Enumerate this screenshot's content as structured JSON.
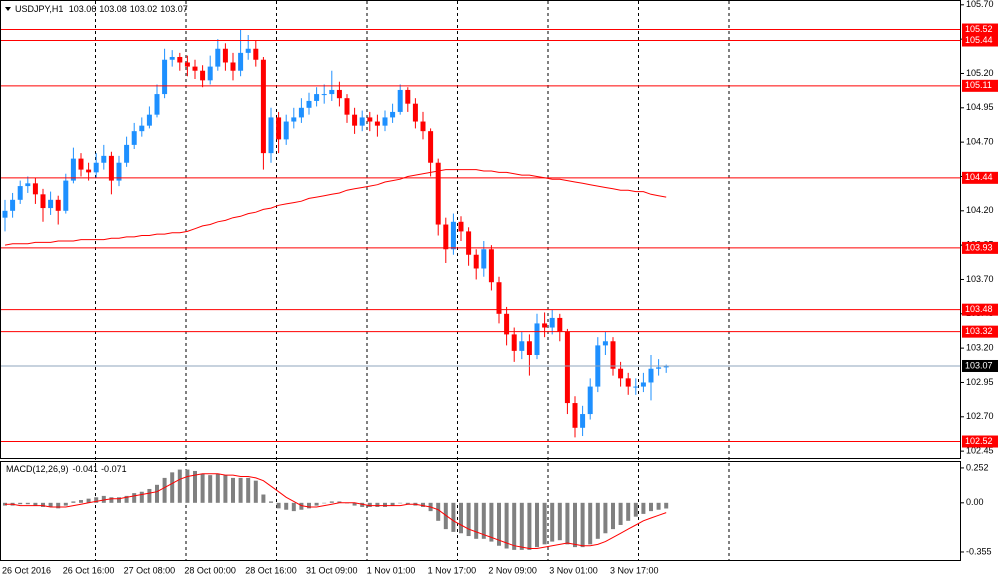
{
  "chart_data": [
    {
      "type": "candlestick",
      "title": "USDJPY,H1",
      "categories": [
        "26 Oct 2016",
        null,
        null,
        null,
        null,
        null,
        null,
        null,
        "26 Oct 16:00",
        null,
        null,
        null,
        null,
        null,
        null,
        null,
        "27 Oct 08:00",
        null,
        null,
        null,
        null,
        null,
        null,
        null,
        "28 Oct 00:00",
        null,
        null,
        null,
        null,
        null,
        null,
        null,
        "28 Oct 16:00",
        null,
        null,
        null,
        null,
        null,
        null,
        null,
        "31 Oct 09:00",
        null,
        null,
        null,
        null,
        null,
        null,
        null,
        "1 Nov 01:00",
        null,
        null,
        null,
        null,
        null,
        null,
        null,
        "1 Nov 17:00",
        null,
        null,
        null,
        null,
        null,
        null,
        null,
        "2 Nov 09:00",
        null,
        null,
        null,
        null,
        null,
        null,
        null,
        "3 Nov 01:00",
        null,
        null,
        null,
        null,
        null,
        null,
        null,
        "3 Nov 17:00",
        null,
        null,
        null,
        null,
        null,
        null,
        null
      ],
      "open": [
        104.15,
        104.2,
        104.28,
        104.38,
        104.4,
        104.32,
        104.22,
        104.28,
        104.2,
        104.42,
        104.58,
        104.5,
        104.48,
        104.55,
        104.6,
        104.42,
        104.55,
        104.68,
        104.78,
        104.82,
        104.9,
        105.05,
        105.3,
        105.32,
        105.28,
        105.25,
        105.22,
        105.15,
        105.25,
        105.38,
        105.28,
        105.22,
        105.35,
        105.38,
        105.3,
        104.62,
        104.88,
        104.72,
        104.85,
        104.88,
        104.95,
        105.0,
        105.05,
        105.05,
        105.08,
        105.02,
        104.9,
        104.82,
        104.88,
        104.85,
        104.82,
        104.88,
        104.92,
        105.08,
        104.98,
        104.85,
        104.78,
        104.55,
        104.1,
        103.92,
        104.12,
        104.05,
        103.88,
        103.78,
        103.92,
        103.68,
        103.45,
        103.3,
        103.18,
        103.25,
        103.15,
        103.38,
        103.35,
        103.42,
        103.32,
        102.8,
        102.62,
        102.72,
        102.92,
        103.22,
        103.25,
        103.05,
        102.98,
        102.92,
        102.92,
        102.95,
        103.05,
        103.06
      ],
      "high": [
        104.28,
        104.33,
        104.42,
        104.45,
        104.44,
        104.36,
        104.34,
        104.31,
        104.47,
        104.66,
        104.62,
        104.55,
        104.62,
        104.68,
        104.63,
        104.6,
        104.74,
        104.84,
        104.88,
        104.96,
        105.12,
        105.38,
        105.37,
        105.35,
        105.33,
        105.3,
        105.26,
        105.33,
        105.45,
        105.42,
        105.35,
        105.52,
        105.48,
        105.44,
        105.32,
        104.95,
        104.92,
        104.9,
        104.95,
        105.02,
        105.06,
        105.1,
        105.12,
        105.22,
        105.14,
        105.05,
        104.95,
        104.93,
        104.92,
        104.9,
        104.93,
        104.98,
        105.12,
        105.1,
        105.02,
        104.92,
        104.8,
        104.58,
        104.15,
        104.18,
        104.16,
        104.08,
        103.92,
        103.98,
        103.95,
        103.72,
        103.5,
        103.35,
        103.32,
        103.3,
        103.45,
        103.46,
        103.48,
        103.45,
        103.34,
        102.85,
        102.78,
        102.98,
        103.28,
        103.32,
        103.28,
        103.1,
        103.02,
        102.98,
        103.02,
        103.15,
        103.12,
        103.08
      ],
      "low": [
        104.05,
        104.15,
        104.25,
        104.33,
        104.25,
        104.12,
        104.17,
        104.1,
        104.18,
        104.4,
        104.45,
        104.42,
        104.44,
        104.5,
        104.32,
        104.38,
        104.52,
        104.65,
        104.74,
        104.8,
        104.88,
        105.02,
        105.25,
        105.22,
        105.18,
        105.16,
        105.1,
        105.12,
        105.22,
        105.22,
        105.15,
        105.18,
        105.3,
        105.25,
        104.5,
        104.55,
        104.62,
        104.68,
        104.8,
        104.84,
        104.9,
        104.96,
        104.98,
        105.0,
        104.96,
        104.84,
        104.76,
        104.78,
        104.78,
        104.74,
        104.78,
        104.84,
        104.9,
        104.92,
        104.8,
        104.72,
        104.45,
        104.02,
        103.82,
        103.88,
        103.98,
        103.8,
        103.7,
        103.72,
        103.62,
        103.38,
        103.22,
        103.1,
        103.12,
        103.0,
        103.12,
        103.28,
        103.3,
        103.25,
        102.72,
        102.55,
        102.56,
        102.68,
        102.88,
        103.15,
        103.0,
        102.92,
        102.86,
        102.86,
        102.88,
        102.82,
        103.0,
        103.02
      ],
      "close": [
        104.2,
        104.28,
        104.38,
        104.4,
        104.32,
        104.22,
        104.28,
        104.2,
        104.42,
        104.58,
        104.5,
        104.48,
        104.55,
        104.6,
        104.42,
        104.55,
        104.68,
        104.78,
        104.82,
        104.9,
        105.05,
        105.3,
        105.32,
        105.28,
        105.25,
        105.22,
        105.15,
        105.25,
        105.38,
        105.28,
        105.22,
        105.35,
        105.38,
        105.3,
        104.62,
        104.88,
        104.72,
        104.85,
        104.88,
        104.95,
        105.0,
        105.05,
        105.05,
        105.08,
        105.02,
        104.9,
        104.82,
        104.88,
        104.85,
        104.82,
        104.88,
        104.92,
        105.08,
        104.98,
        104.85,
        104.78,
        104.55,
        104.1,
        103.92,
        104.12,
        104.05,
        103.88,
        103.78,
        103.92,
        103.68,
        103.45,
        103.3,
        103.18,
        103.25,
        103.15,
        103.38,
        103.35,
        103.42,
        103.32,
        102.8,
        102.62,
        102.72,
        102.92,
        103.22,
        103.25,
        103.05,
        102.98,
        102.92,
        102.92,
        102.95,
        103.05,
        103.06,
        103.07
      ],
      "ma": [
        103.95,
        103.96,
        103.96,
        103.96,
        103.97,
        103.97,
        103.97,
        103.98,
        103.98,
        103.98,
        103.99,
        103.99,
        103.99,
        103.99,
        104.0,
        104.0,
        104.01,
        104.01,
        104.02,
        104.02,
        104.03,
        104.03,
        104.04,
        104.04,
        104.05,
        104.07,
        104.09,
        104.1,
        104.12,
        104.13,
        104.15,
        104.16,
        104.18,
        104.19,
        104.21,
        104.22,
        104.24,
        104.25,
        104.26,
        104.27,
        104.29,
        104.3,
        104.31,
        104.32,
        104.33,
        104.35,
        104.36,
        104.37,
        104.38,
        104.39,
        104.41,
        104.42,
        104.43,
        104.45,
        104.46,
        104.47,
        104.48,
        104.49,
        104.5,
        104.5,
        104.5,
        104.5,
        104.5,
        104.49,
        104.49,
        104.48,
        104.48,
        104.47,
        104.46,
        104.46,
        104.45,
        104.44,
        104.43,
        104.43,
        104.42,
        104.41,
        104.4,
        104.39,
        104.38,
        104.37,
        104.36,
        104.35,
        104.35,
        104.34,
        104.34,
        104.32,
        104.31,
        104.3
      ],
      "levels": [
        105.52,
        105.44,
        105.11,
        104.44,
        103.93,
        103.48,
        103.32,
        102.52
      ],
      "up_color": "#1e90ff",
      "down_color": "#ff0000",
      "ma_color": "#ff0000",
      "level_color": "#ff0000",
      "price_line_color": "#8fa5bd",
      "ylim": [
        102.4,
        105.735
      ],
      "yticks": [
        {
          "value": 105.7,
          "label": "105.70"
        },
        105.45,
        {
          "value": 105.2,
          "label": "105.20"
        },
        104.95,
        {
          "value": 104.7,
          "label": "104.70"
        },
        104.45,
        {
          "value": 104.2,
          "label": "104.20"
        },
        103.95,
        {
          "value": 103.7,
          "label": "103.70"
        },
        103.45,
        {
          "value": 103.2,
          "label": "103.20"
        },
        102.95,
        {
          "value": 102.7,
          "label": "102.70"
        },
        102.45
      ]
    },
    {
      "type": "macd",
      "title": "MACD(12,26,9)",
      "hist": [
        -0.02,
        -0.02,
        -0.01,
        -0.01,
        -0.02,
        -0.03,
        -0.03,
        -0.04,
        -0.02,
        0.01,
        0.02,
        0.03,
        0.04,
        0.05,
        0.04,
        0.04,
        0.05,
        0.07,
        0.08,
        0.1,
        0.13,
        0.18,
        0.22,
        0.24,
        0.24,
        0.23,
        0.21,
        0.2,
        0.21,
        0.2,
        0.18,
        0.18,
        0.18,
        0.16,
        0.06,
        0.01,
        -0.04,
        -0.05,
        -0.06,
        -0.05,
        -0.04,
        -0.02,
        0.0,
        0.01,
        0.01,
        0.0,
        -0.02,
        -0.03,
        -0.03,
        -0.03,
        -0.03,
        -0.02,
        0.0,
        -0.01,
        -0.02,
        -0.03,
        -0.06,
        -0.13,
        -0.19,
        -0.21,
        -0.22,
        -0.24,
        -0.26,
        -0.26,
        -0.28,
        -0.31,
        -0.33,
        -0.34,
        -0.34,
        -0.34,
        -0.32,
        -0.3,
        -0.28,
        -0.27,
        -0.3,
        -0.32,
        -0.32,
        -0.3,
        -0.26,
        -0.22,
        -0.19,
        -0.16,
        -0.13,
        -0.1,
        -0.08,
        -0.06,
        -0.05,
        -0.041
      ],
      "signal": [
        -0.01,
        -0.01,
        -0.02,
        -0.02,
        -0.02,
        -0.02,
        -0.03,
        -0.03,
        -0.03,
        -0.02,
        -0.01,
        0.0,
        0.01,
        0.02,
        0.03,
        0.03,
        0.04,
        0.05,
        0.06,
        0.07,
        0.08,
        0.11,
        0.14,
        0.17,
        0.19,
        0.2,
        0.21,
        0.21,
        0.21,
        0.2,
        0.2,
        0.19,
        0.19,
        0.18,
        0.16,
        0.12,
        0.08,
        0.04,
        0.01,
        -0.02,
        -0.03,
        -0.03,
        -0.02,
        -0.01,
        0.0,
        0.0,
        0.0,
        -0.01,
        -0.02,
        -0.02,
        -0.02,
        -0.02,
        -0.02,
        -0.01,
        -0.01,
        -0.02,
        -0.03,
        -0.05,
        -0.09,
        -0.13,
        -0.16,
        -0.19,
        -0.21,
        -0.23,
        -0.25,
        -0.27,
        -0.29,
        -0.31,
        -0.32,
        -0.33,
        -0.33,
        -0.32,
        -0.31,
        -0.3,
        -0.29,
        -0.3,
        -0.31,
        -0.31,
        -0.3,
        -0.28,
        -0.25,
        -0.22,
        -0.19,
        -0.16,
        -0.13,
        -0.11,
        -0.09,
        -0.071
      ],
      "hist_color": "#808080",
      "signal_color": "#ff0000",
      "ylim": [
        -0.413,
        0.302
      ],
      "yticks": [
        0.252,
        {
          "value": 0,
          "label": "0.00"
        },
        -0.355
      ]
    }
  ]
}
